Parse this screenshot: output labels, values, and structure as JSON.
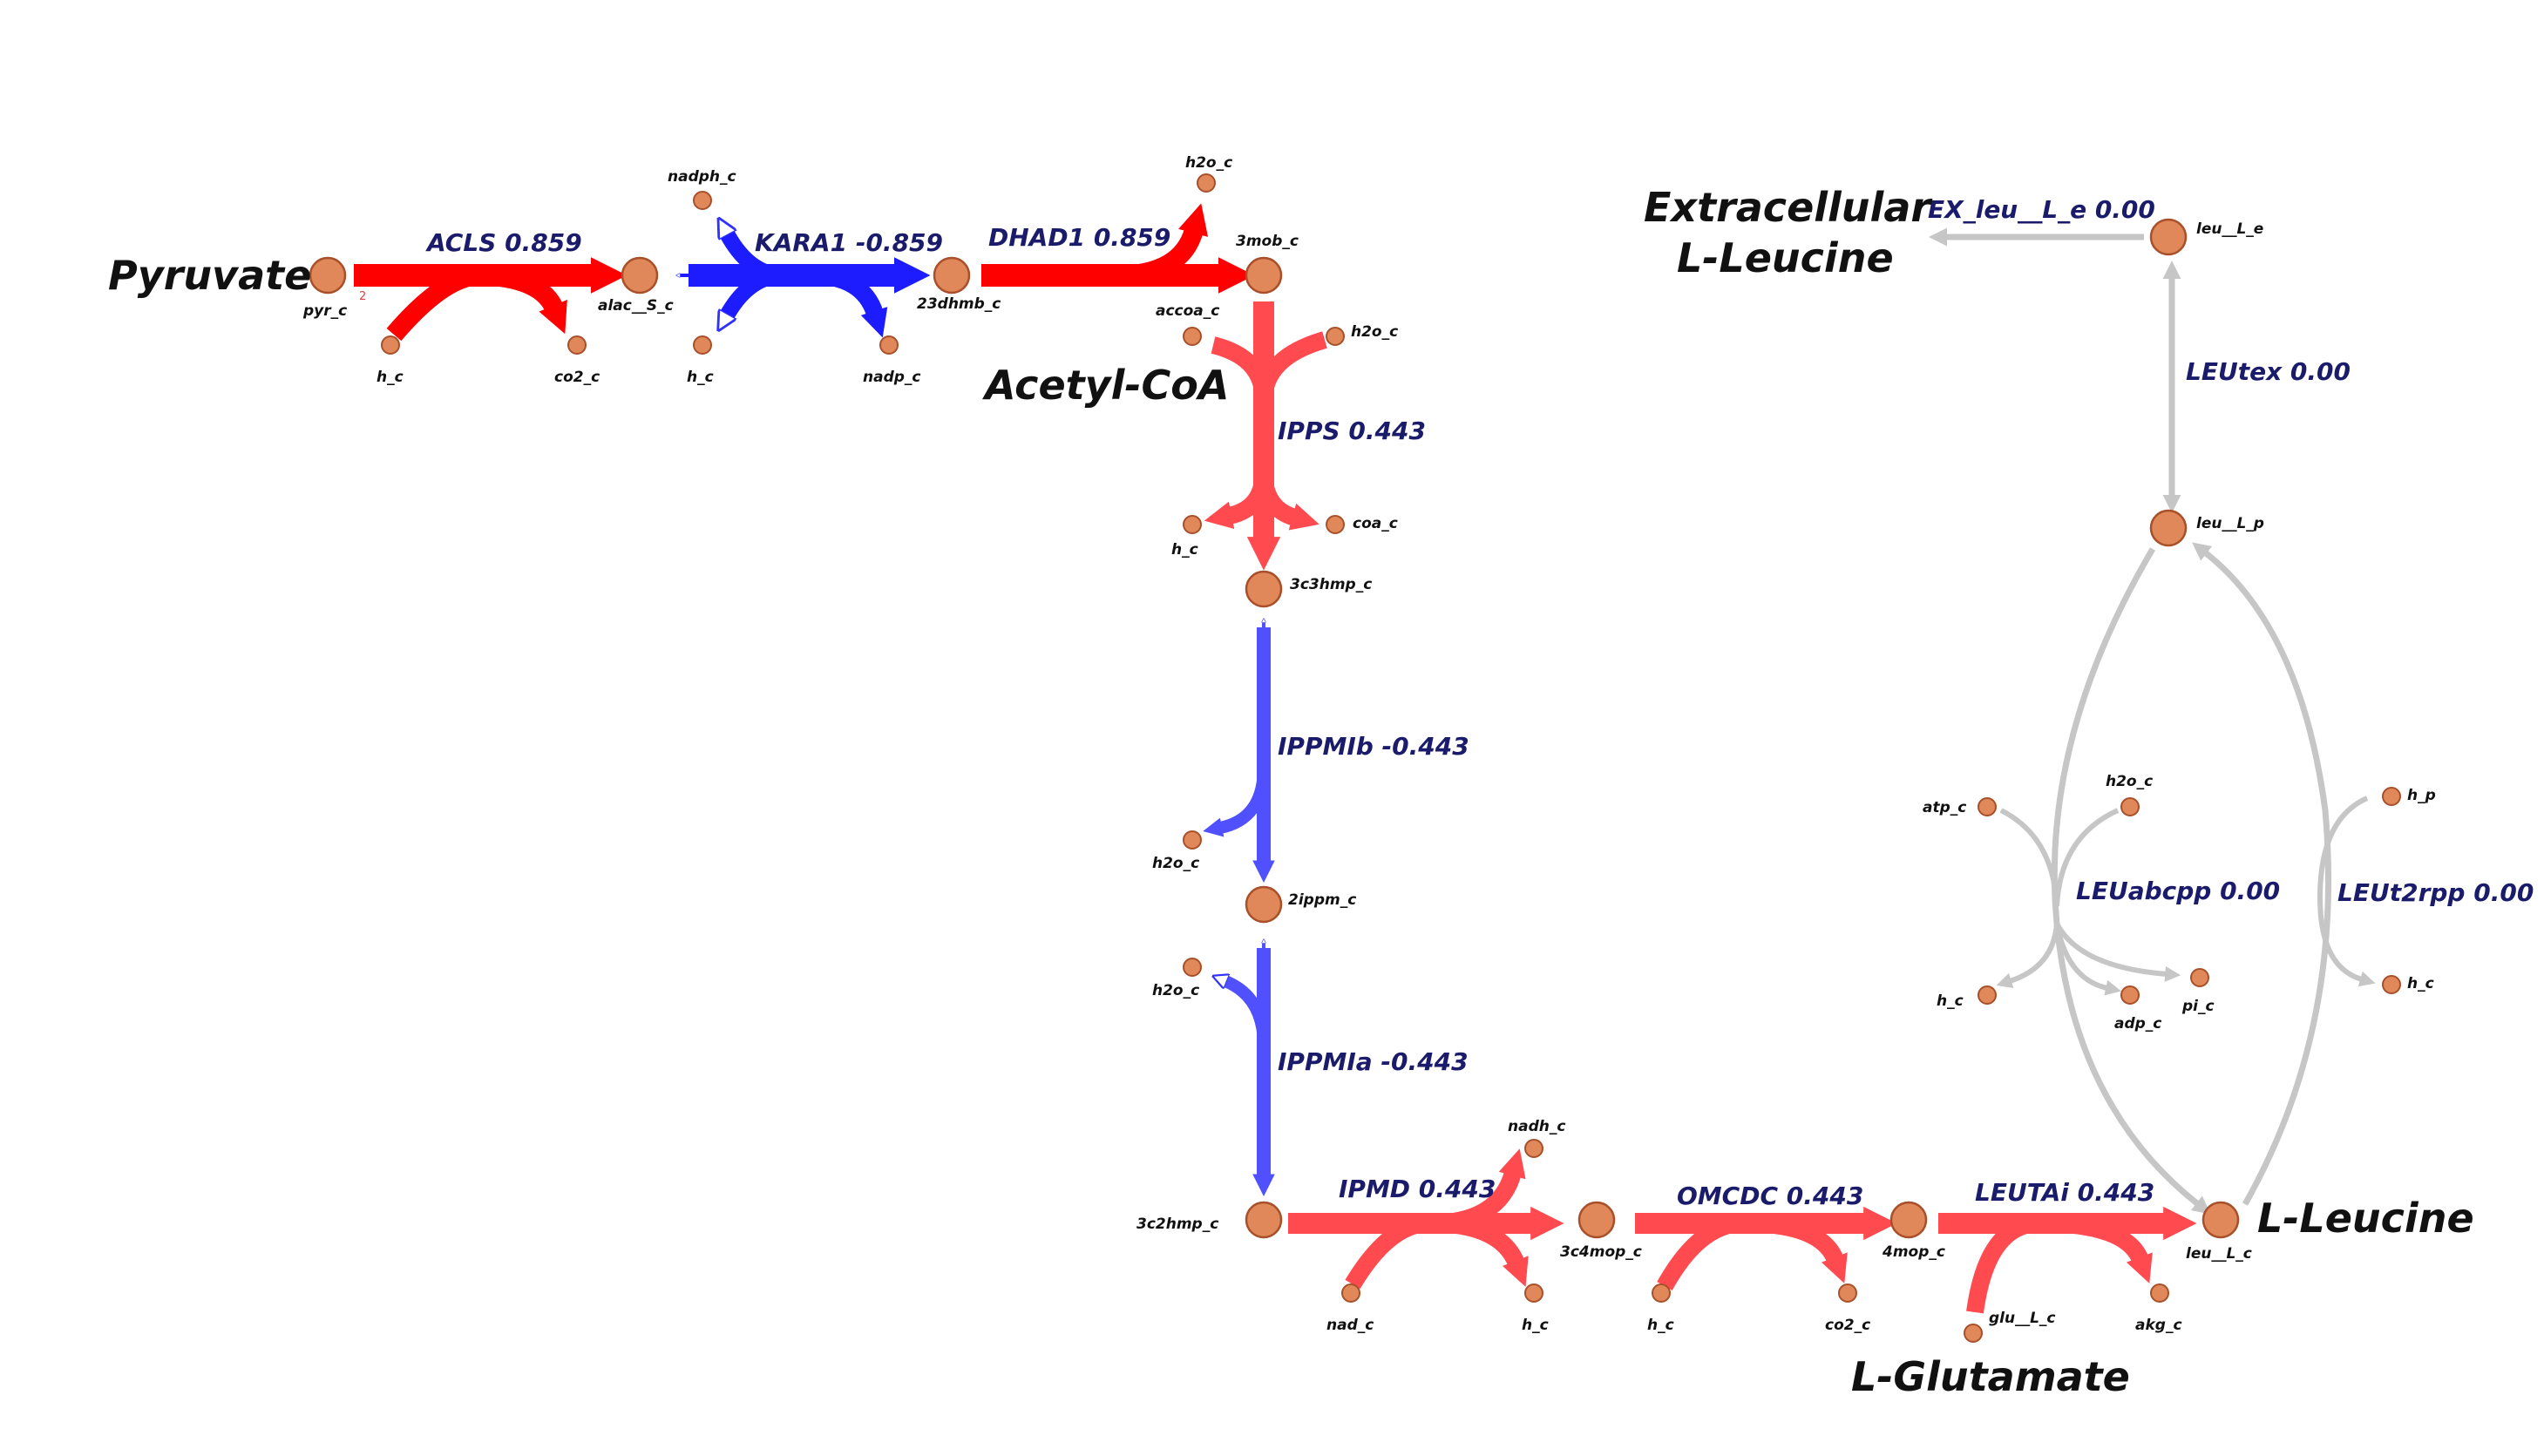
{
  "colors": {
    "positive_high": "#ff0000",
    "positive_mid": "#ff4a50",
    "negative_high": "#1c1cff",
    "negative_mid": "#5050ff",
    "zero": "#c6c6c6",
    "node_fill": "#e0885a",
    "reaction_label": "#1b1b6b"
  },
  "labels": {
    "pyruvate": "Pyruvate",
    "acetyl_coa": "Acetyl-CoA",
    "extracellular_line1": "Extracellular",
    "extracellular_line2": "L-Leucine",
    "l_leucine": "L-Leucine",
    "l_glutamate": "L-Glutamate"
  },
  "reactions": {
    "acls": "ACLS 0.859",
    "kara1": "KARA1 -0.859",
    "dhad1": "DHAD1 0.859",
    "ipps": "IPPS 0.443",
    "ippmib": "IPPMIb -0.443",
    "ippmia": "IPPMIa -0.443",
    "ipmd": "IPMD 0.443",
    "omcdc": "OMCDC 0.443",
    "leutai": "LEUTAi 0.443",
    "ex_leu": "EX_leu__L_e 0.00",
    "leutex": "LEUtex 0.00",
    "leuabcpp": "LEUabcpp 0.00",
    "leut2rpp": "LEUt2rpp 0.00"
  },
  "metabolites": {
    "pyr_c": "pyr_c",
    "pyr_note": "2",
    "alac_s_c": "alac__S_c",
    "h_c_acls": "h_c",
    "co2_c_acls": "co2_c",
    "nadph_c": "nadph_c",
    "h_c_kara1": "h_c",
    "nadp_c": "nadp_c",
    "dhmb_c": "23dhmb_c",
    "h2o_c_dhad1": "h2o_c",
    "mob_c": "3mob_c",
    "accoa_c": "accoa_c",
    "h2o_c_ipps": "h2o_c",
    "h_c_ipps": "h_c",
    "coa_c": "coa_c",
    "c3hmp_c": "3c3hmp_c",
    "h2o_c_ippmib": "h2o_c",
    "ippm_c": "2ippm_c",
    "h2o_c_ippmia": "h2o_c",
    "c2hmp_c": "3c2hmp_c",
    "nad_c": "nad_c",
    "nadh_c": "nadh_c",
    "h_c_ipmd": "h_c",
    "c4mop_c": "3c4mop_c",
    "h_c_omcdc": "h_c",
    "co2_c_omcdc": "co2_c",
    "mop_c": "4mop_c",
    "glu_l_c": "glu__L_c",
    "akg_c": "akg_c",
    "leu_l_c": "leu__L_c",
    "leu_l_e": "leu__L_e",
    "leu_l_p": "leu__L_p",
    "atp_c": "atp_c",
    "h2o_c_abc": "h2o_c",
    "h_c_abc": "h_c",
    "adp_c": "adp_c",
    "pi_c": "pi_c",
    "h_p": "h_p",
    "h_c_t2rpp": "h_c"
  }
}
